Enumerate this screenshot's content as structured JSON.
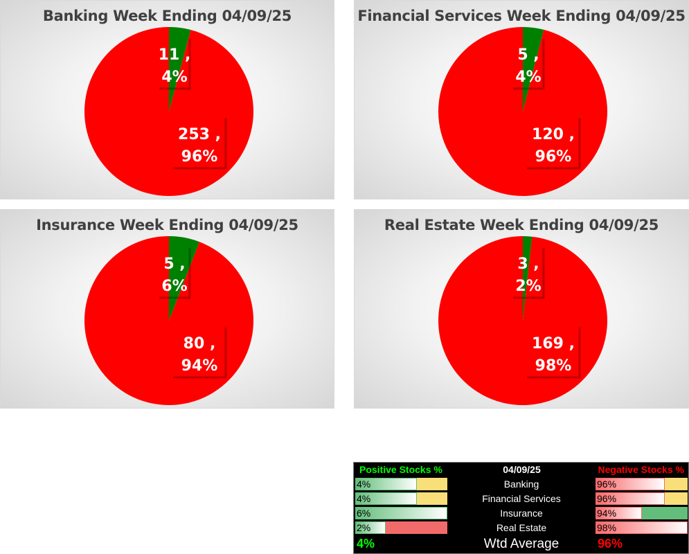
{
  "chart_data": [
    {
      "type": "pie",
      "title": "Banking Week Ending 04/09/25",
      "slices": [
        {
          "label": "11 ,",
          "pct_label": "4%",
          "value": 11,
          "percent": 4,
          "color": "#008000"
        },
        {
          "label": "253 ,",
          "pct_label": "96%",
          "value": 253,
          "percent": 96,
          "color": "#ff0000"
        }
      ]
    },
    {
      "type": "pie",
      "title": "Financial Services Week Ending 04/09/25",
      "slices": [
        {
          "label": "5 ,",
          "pct_label": "4%",
          "value": 5,
          "percent": 4,
          "color": "#008000"
        },
        {
          "label": "120 ,",
          "pct_label": "96%",
          "value": 120,
          "percent": 96,
          "color": "#ff0000"
        }
      ]
    },
    {
      "type": "pie",
      "title": "Insurance Week Ending 04/09/25",
      "slices": [
        {
          "label": "5 ,",
          "pct_label": "6%",
          "value": 5,
          "percent": 6,
          "color": "#008000"
        },
        {
          "label": "80 ,",
          "pct_label": "94%",
          "value": 80,
          "percent": 94,
          "color": "#ff0000"
        }
      ]
    },
    {
      "type": "pie",
      "title": "Real Estate Week Ending 04/09/25",
      "slices": [
        {
          "label": "3 ,",
          "pct_label": "2%",
          "value": 3,
          "percent": 2,
          "color": "#008000"
        },
        {
          "label": "169 ,",
          "pct_label": "98%",
          "value": 169,
          "percent": 98,
          "color": "#ff0000"
        }
      ]
    }
  ],
  "summary": {
    "positive_header": "Positive Stocks %",
    "date": "04/09/25",
    "negative_header": "Negative Stocks %",
    "rows": [
      {
        "category": "Banking",
        "positive": "4%",
        "negative": "96%"
      },
      {
        "category": "Financial Services",
        "positive": "4%",
        "negative": "96%"
      },
      {
        "category": "Insurance",
        "positive": "6%",
        "negative": "94%"
      },
      {
        "category": "Real Estate",
        "positive": "2%",
        "negative": "98%"
      }
    ],
    "average_label": "Wtd Average",
    "average_positive": "4%",
    "average_negative": "96%"
  }
}
